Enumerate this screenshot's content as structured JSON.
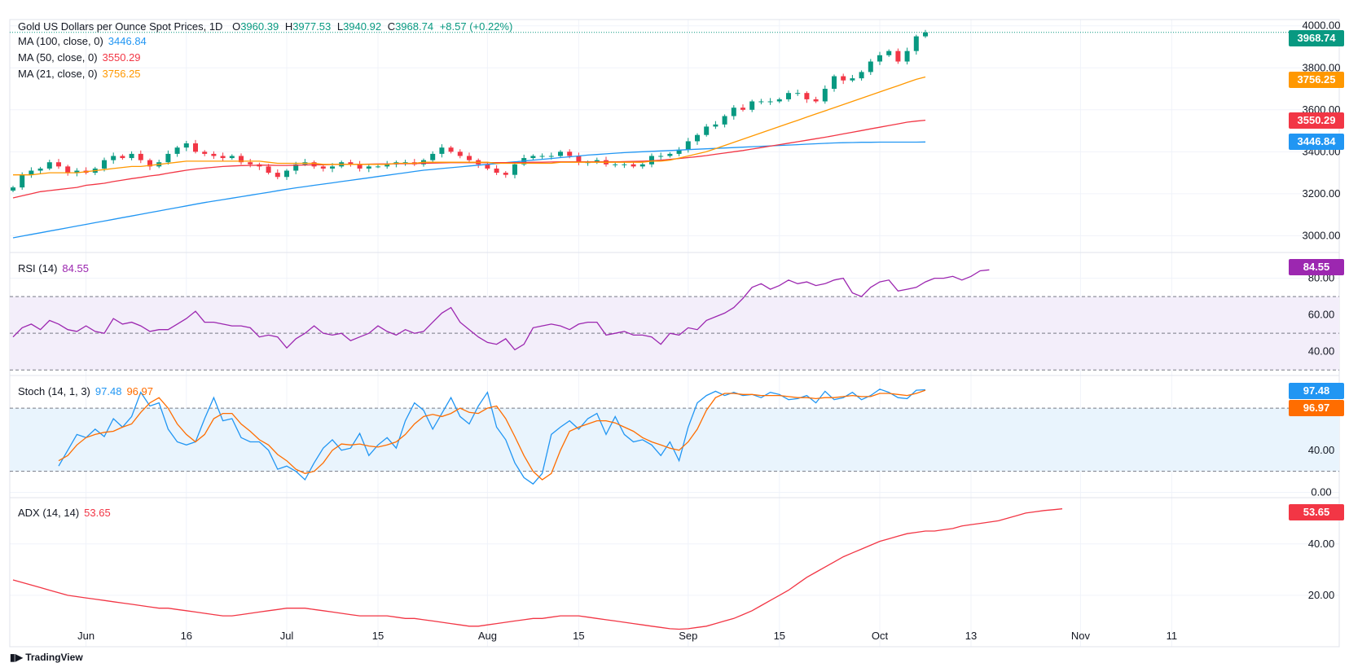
{
  "header": {
    "symbol_title": "Gold US Dollars per Ounce Spot Prices, 1D",
    "open_label": "O",
    "open": "3960.39",
    "high_label": "H",
    "high": "3977.53",
    "low_label": "L",
    "low": "3940.92",
    "close_label": "C",
    "close": "3968.74",
    "change": "+8.57 (+0.22%)"
  },
  "legends": {
    "ma100": {
      "label": "MA (100, close, 0)",
      "value": "3446.84"
    },
    "ma50": {
      "label": "MA (50, close, 0)",
      "value": "3550.29"
    },
    "ma21": {
      "label": "MA (21, close, 0)",
      "value": "3756.25"
    },
    "rsi": {
      "label": "RSI (14)",
      "value": "84.55"
    },
    "stoch": {
      "label": "Stoch (14, 1, 3)",
      "k": "97.48",
      "d": "96.97"
    },
    "adx": {
      "label": "ADX (14, 14)",
      "value": "53.65"
    }
  },
  "price_tags": {
    "last": "3968.74",
    "ma21": "3756.25",
    "ma50": "3550.29",
    "ma100": "3446.84",
    "rsi": "84.55",
    "stoch_k": "97.48",
    "stoch_d": "96.97",
    "adx": "53.65"
  },
  "colors": {
    "up": "#089981",
    "down": "#f23645",
    "ma100": "#2196f3",
    "ma50": "#f23645",
    "ma21": "#ff9800",
    "rsi": "#9c27b0",
    "stoch_k": "#2196f3",
    "stoch_d": "#ff6d00",
    "adx": "#f23645",
    "rsi_band": "#f3eefa",
    "stoch_band": "#e9f4fd"
  },
  "x_axis": {
    "labels": [
      "Jun",
      "16",
      "Jul",
      "15",
      "Aug",
      "15",
      "Sep",
      "15",
      "Oct",
      "13",
      "Nov",
      "11"
    ],
    "label_bar_index": [
      8,
      19,
      30,
      40,
      52,
      62,
      74,
      84,
      95,
      105,
      117,
      127
    ]
  },
  "branding": "TradingView",
  "chart_data": [
    {
      "type": "candlestick",
      "title": "Gold US Dollars per Ounce Spot Prices, 1D",
      "y_ticks": [
        3000,
        3200,
        3400,
        3600,
        3800,
        4000
      ],
      "y_tick_labels": [
        "3000.00",
        "3200.00",
        "3400.00",
        "3600.00",
        "3800.00",
        "4000.00"
      ],
      "ylim": [
        2920,
        4030
      ],
      "bars_total": 150,
      "close": [
        3230,
        3290,
        3310,
        3320,
        3350,
        3330,
        3300,
        3310,
        3300,
        3320,
        3360,
        3380,
        3370,
        3390,
        3360,
        3330,
        3350,
        3390,
        3420,
        3440,
        3400,
        3390,
        3380,
        3370,
        3380,
        3350,
        3340,
        3330,
        3300,
        3280,
        3310,
        3340,
        3350,
        3330,
        3320,
        3330,
        3350,
        3340,
        3320,
        3330,
        3330,
        3340,
        3350,
        3350,
        3340,
        3360,
        3390,
        3420,
        3400,
        3380,
        3360,
        3340,
        3320,
        3300,
        3290,
        3340,
        3370,
        3380,
        3380,
        3380,
        3400,
        3380,
        3350,
        3350,
        3360,
        3340,
        3340,
        3340,
        3330,
        3340,
        3380,
        3380,
        3390,
        3410,
        3450,
        3480,
        3520,
        3530,
        3570,
        3610,
        3600,
        3640,
        3640,
        3640,
        3650,
        3680,
        3680,
        3650,
        3640,
        3700,
        3760,
        3740,
        3750,
        3780,
        3830,
        3860,
        3880,
        3830,
        3880,
        3950,
        3968.74
      ],
      "ma21": [
        3290,
        3290,
        3290,
        3295,
        3300,
        3300,
        3300,
        3300,
        3305,
        3310,
        3315,
        3320,
        3325,
        3330,
        3330,
        3335,
        3340,
        3345,
        3350,
        3355,
        3355,
        3355,
        3355,
        3355,
        3355,
        3355,
        3355,
        3355,
        3350,
        3345,
        3345,
        3345,
        3345,
        3345,
        3340,
        3340,
        3340,
        3340,
        3340,
        3340,
        3340,
        3340,
        3345,
        3345,
        3345,
        3350,
        3350,
        3350,
        3350,
        3350,
        3350,
        3350,
        3350,
        3345,
        3345,
        3345,
        3345,
        3345,
        3345,
        3345,
        3350,
        3350,
        3350,
        3350,
        3350,
        3350,
        3350,
        3350,
        3350,
        3350,
        3355,
        3355,
        3360,
        3370,
        3380,
        3390,
        3400,
        3415,
        3430,
        3445,
        3460,
        3475,
        3490,
        3505,
        3520,
        3535,
        3550,
        3565,
        3580,
        3595,
        3610,
        3625,
        3640,
        3655,
        3670,
        3685,
        3700,
        3715,
        3730,
        3745,
        3756.25
      ],
      "ma50": [
        3180,
        3190,
        3200,
        3210,
        3215,
        3220,
        3225,
        3230,
        3240,
        3245,
        3250,
        3258,
        3265,
        3272,
        3278,
        3285,
        3290,
        3298,
        3305,
        3312,
        3318,
        3322,
        3326,
        3330,
        3332,
        3334,
        3335,
        3336,
        3336,
        3335,
        3335,
        3336,
        3337,
        3338,
        3338,
        3339,
        3340,
        3340,
        3340,
        3341,
        3342,
        3342,
        3343,
        3343,
        3344,
        3345,
        3346,
        3347,
        3348,
        3348,
        3348,
        3348,
        3348,
        3348,
        3348,
        3348,
        3349,
        3350,
        3350,
        3351,
        3352,
        3352,
        3352,
        3352,
        3352,
        3352,
        3352,
        3353,
        3354,
        3355,
        3357,
        3360,
        3364,
        3368,
        3372,
        3377,
        3382,
        3388,
        3394,
        3400,
        3406,
        3413,
        3420,
        3427,
        3434,
        3441,
        3448,
        3455,
        3462,
        3469,
        3477,
        3485,
        3493,
        3501,
        3509,
        3517,
        3525,
        3533,
        3541,
        3546,
        3550.29
      ],
      "ma100": [
        2990,
        2998,
        3006,
        3014,
        3022,
        3030,
        3038,
        3046,
        3054,
        3062,
        3070,
        3078,
        3086,
        3094,
        3102,
        3110,
        3118,
        3126,
        3134,
        3142,
        3150,
        3158,
        3165,
        3172,
        3179,
        3186,
        3193,
        3200,
        3207,
        3214,
        3221,
        3228,
        3234,
        3240,
        3246,
        3252,
        3258,
        3264,
        3270,
        3276,
        3282,
        3288,
        3294,
        3300,
        3306,
        3312,
        3316,
        3320,
        3324,
        3328,
        3332,
        3336,
        3340,
        3344,
        3348,
        3352,
        3356,
        3360,
        3364,
        3368,
        3372,
        3376,
        3380,
        3384,
        3387,
        3390,
        3393,
        3396,
        3398,
        3400,
        3402,
        3404,
        3406,
        3408,
        3410,
        3412,
        3414,
        3416,
        3418,
        3420,
        3422,
        3424,
        3426,
        3428,
        3430,
        3432,
        3434,
        3436,
        3438,
        3440,
        3442,
        3443,
        3444,
        3445,
        3445,
        3446,
        3446,
        3446,
        3446,
        3446,
        3446.84
      ]
    },
    {
      "type": "line",
      "title": "RSI (14)",
      "y_ticks": [
        40,
        60,
        80
      ],
      "y_tick_labels": [
        "40.00",
        "60.00",
        "80.00"
      ],
      "bands": [
        30,
        50,
        70
      ],
      "ylim": [
        27,
        94
      ],
      "values": [
        48,
        53,
        55,
        52,
        57,
        55,
        52,
        51,
        54,
        51,
        50,
        58,
        55,
        56,
        54,
        51,
        52,
        52,
        55,
        58,
        62,
        56,
        56,
        55,
        54,
        54,
        53,
        48,
        49,
        48,
        42,
        47,
        50,
        54,
        50,
        49,
        50,
        46,
        48,
        50,
        54,
        51,
        49,
        52,
        50,
        51,
        56,
        61,
        64,
        56,
        52,
        48,
        45,
        44,
        47,
        41,
        44,
        53,
        54,
        55,
        54,
        52,
        55,
        56,
        56,
        49,
        50,
        51,
        49,
        49,
        48,
        44,
        50,
        49,
        53,
        52,
        57,
        59,
        61,
        64,
        69,
        75,
        77,
        74,
        76,
        79,
        77,
        78,
        76,
        77,
        79,
        80,
        72,
        70,
        75,
        78,
        79,
        73,
        74,
        75,
        78,
        80,
        80,
        81,
        79,
        81,
        84,
        84.55
      ]
    },
    {
      "type": "line",
      "title": "Stoch (14, 1, 3)",
      "y_ticks": [
        0,
        40
      ],
      "y_tick_labels": [
        "0.00",
        "40.00"
      ],
      "bands": [
        20,
        80
      ],
      "ylim": [
        -5,
        111
      ],
      "k": [
        25,
        40,
        55,
        52,
        60,
        53,
        70,
        62,
        72,
        95,
        82,
        85,
        60,
        48,
        45,
        48,
        70,
        90,
        68,
        70,
        52,
        48,
        48,
        40,
        22,
        25,
        20,
        12,
        28,
        42,
        50,
        40,
        42,
        56,
        35,
        45,
        52,
        42,
        68,
        85,
        78,
        60,
        75,
        90,
        72,
        65,
        82,
        95,
        62,
        50,
        28,
        14,
        8,
        18,
        55,
        62,
        68,
        60,
        70,
        75,
        55,
        72,
        55,
        48,
        50,
        45,
        35,
        48,
        30,
        62,
        85,
        92,
        96,
        92,
        95,
        92,
        93,
        90,
        95,
        93,
        88,
        89,
        92,
        85,
        96,
        88,
        90,
        95,
        88,
        92,
        98,
        95,
        90,
        89,
        97,
        97.48
      ],
      "d": [
        30,
        35,
        45,
        52,
        55,
        57,
        58,
        62,
        65,
        76,
        85,
        90,
        80,
        65,
        55,
        48,
        55,
        70,
        75,
        75,
        65,
        58,
        50,
        45,
        36,
        30,
        22,
        18,
        20,
        28,
        40,
        46,
        45,
        46,
        44,
        43,
        45,
        48,
        55,
        65,
        72,
        74,
        72,
        75,
        80,
        76,
        75,
        80,
        82,
        70,
        53,
        35,
        20,
        12,
        18,
        40,
        58,
        62,
        65,
        68,
        68,
        66,
        62,
        58,
        52,
        48,
        45,
        42,
        40,
        48,
        60,
        78,
        90,
        94,
        94,
        93,
        93,
        92,
        92,
        92,
        91,
        90,
        90,
        89,
        90,
        90,
        91,
        92,
        91,
        91,
        94,
        94,
        93,
        92,
        94,
        96.97
      ]
    },
    {
      "type": "line",
      "title": "ADX (14, 14)",
      "y_ticks": [
        20,
        40
      ],
      "y_tick_labels": [
        "20.00",
        "40.00"
      ],
      "ylim": [
        0,
        58
      ],
      "values": [
        26,
        25,
        24,
        23,
        22,
        21,
        20,
        19.5,
        19,
        18.5,
        18,
        17.5,
        17,
        16.5,
        16,
        15.5,
        15,
        15,
        14.5,
        14,
        13.5,
        13,
        12.5,
        12,
        12,
        12.5,
        13,
        13.5,
        14,
        14.5,
        15,
        15,
        15,
        14.5,
        14,
        13.5,
        13,
        12.5,
        12,
        12,
        12,
        12,
        11.5,
        11,
        11,
        10.5,
        10,
        9.5,
        9,
        8.5,
        8,
        8,
        8.5,
        9,
        9.5,
        10,
        10.5,
        11,
        11,
        11.5,
        12,
        12,
        12,
        11.5,
        11,
        10.5,
        10,
        9.5,
        9,
        8.5,
        8,
        7.5,
        7,
        6.8,
        7,
        7.5,
        8,
        9,
        10,
        11,
        12.5,
        14,
        16,
        18,
        20,
        22,
        24.5,
        27,
        29,
        31,
        33,
        35,
        36.5,
        38,
        39.5,
        41,
        42,
        43,
        44,
        44.5,
        45,
        45,
        45.5,
        46,
        47,
        47.5,
        48,
        48.5,
        49,
        50,
        51,
        52,
        52.5,
        53,
        53.3,
        53.65
      ]
    }
  ]
}
